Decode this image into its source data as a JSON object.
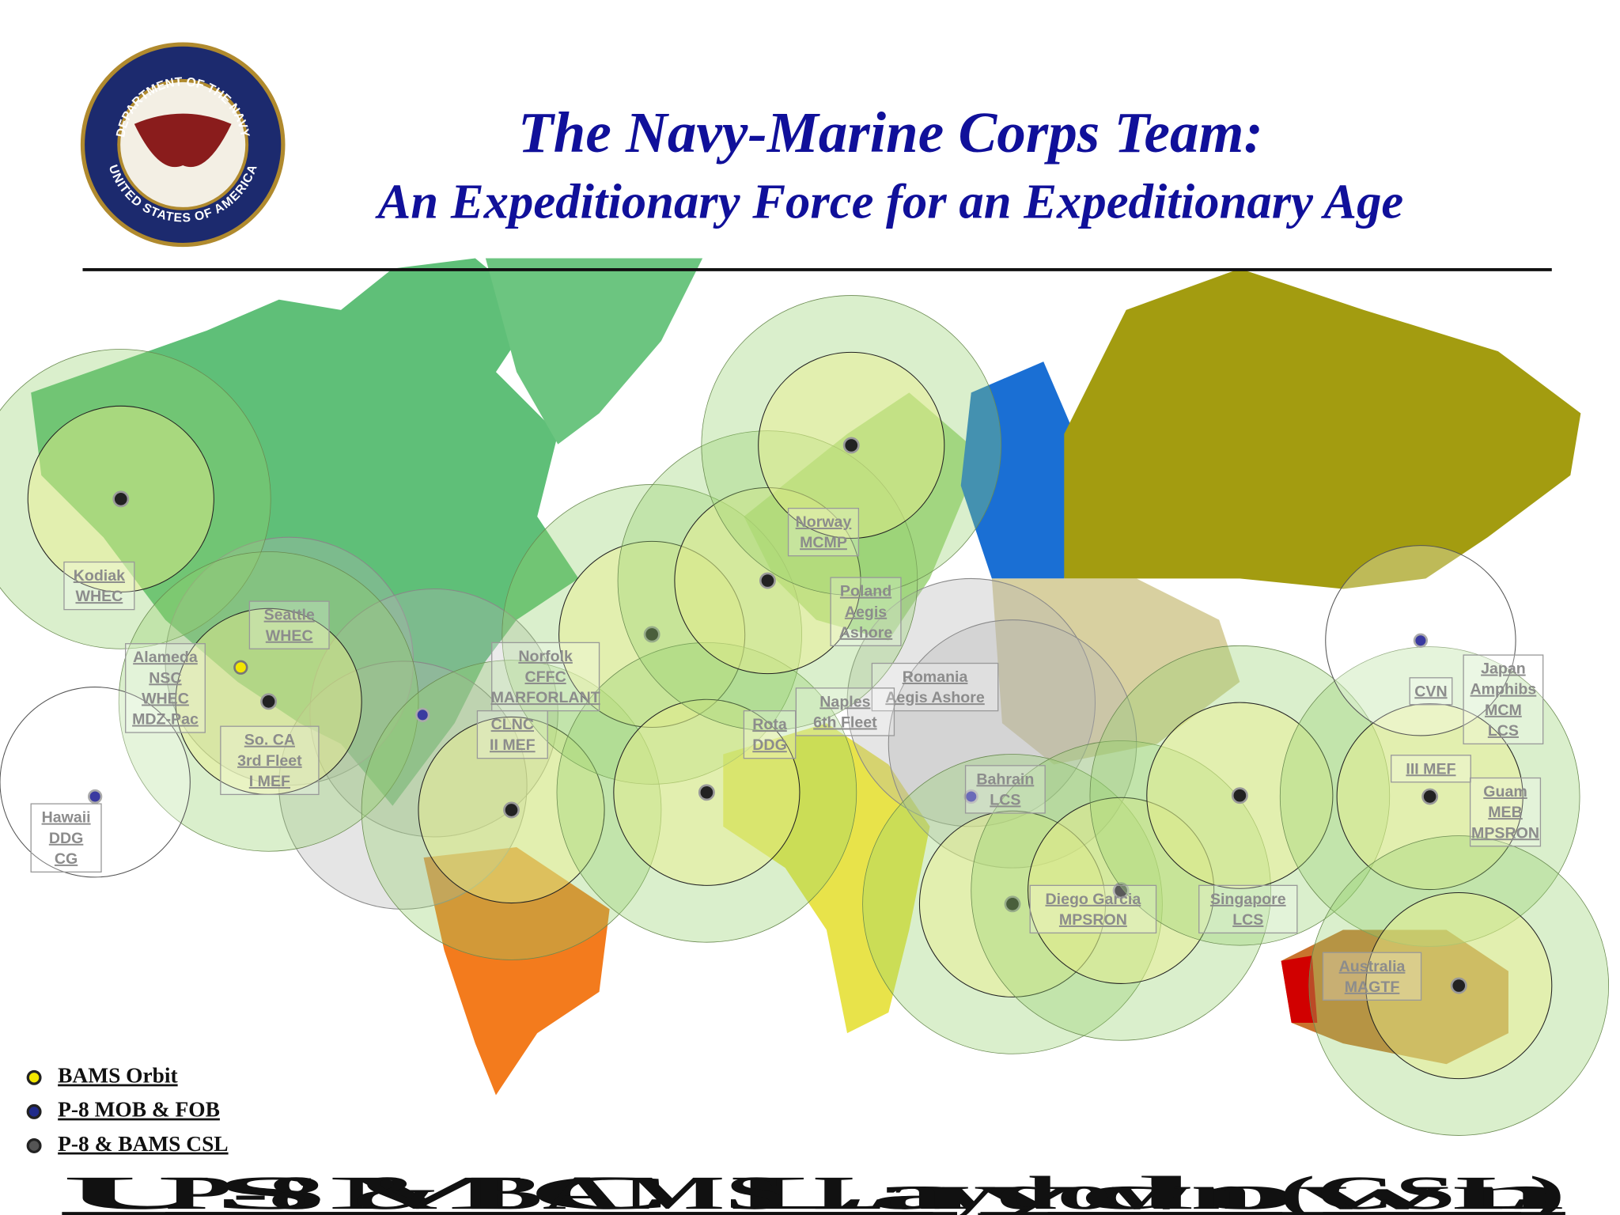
{
  "header": {
    "title": "The Navy-Marine Corps Team:",
    "subtitle": "An Expeditionary Force for an Expeditionary Age",
    "seal": {
      "top": "DEPARTMENT OF THE NAVY",
      "bottom": "UNITED STATES OF AMERICA"
    }
  },
  "map": {
    "labels": [
      {
        "lines": [
          "Kodiak",
          "WHEC"
        ]
      },
      {
        "lines": [
          "Seattle",
          "WHEC"
        ]
      },
      {
        "lines": [
          "Alameda",
          "NSC",
          "WHEC",
          "MDZ-Pac"
        ]
      },
      {
        "lines": [
          "So. CA",
          "3rd Fleet",
          "I MEF"
        ]
      },
      {
        "lines": [
          "Hawaii",
          "DDG",
          "CG"
        ]
      },
      {
        "lines": [
          "Norfolk",
          "CFFC",
          "MARFORLANT"
        ]
      },
      {
        "lines": [
          "CLNC",
          "II MEF"
        ]
      },
      {
        "lines": [
          "Norway",
          "MCMP"
        ]
      },
      {
        "lines": [
          "Poland",
          "Aegis",
          "Ashore"
        ]
      },
      {
        "lines": [
          "Romania",
          "Aegis Ashore"
        ]
      },
      {
        "lines": [
          "Naples",
          "6th Fleet"
        ]
      },
      {
        "lines": [
          "Rota",
          "DDG"
        ]
      },
      {
        "lines": [
          "Bahrain",
          "LCS"
        ]
      },
      {
        "lines": [
          "Diego Garcia",
          "MPSRON"
        ]
      },
      {
        "lines": [
          "Singapore",
          "LCS"
        ]
      },
      {
        "lines": [
          "Japan",
          "Amphibs",
          "MCM",
          "LCS"
        ]
      },
      {
        "lines": [
          "CVN"
        ]
      },
      {
        "lines": [
          "III MEF"
        ]
      },
      {
        "lines": [
          "Guam",
          "MEB",
          "MPSRON"
        ]
      },
      {
        "lines": [
          "Australia",
          "MAGTF"
        ]
      }
    ]
  },
  "legend": {
    "items": [
      {
        "label": "BAMS Orbit",
        "color": "#f2e600"
      },
      {
        "label": "P-8 MOB & FOB",
        "color": "#1f2a8a"
      },
      {
        "label": "P-8 & BAMS CSL",
        "color": "#555555"
      }
    ]
  },
  "footer": {
    "overlapping_titles": [
      "USMC Laydown",
      "P-8 & BAMS Laydown (CSL)"
    ]
  }
}
